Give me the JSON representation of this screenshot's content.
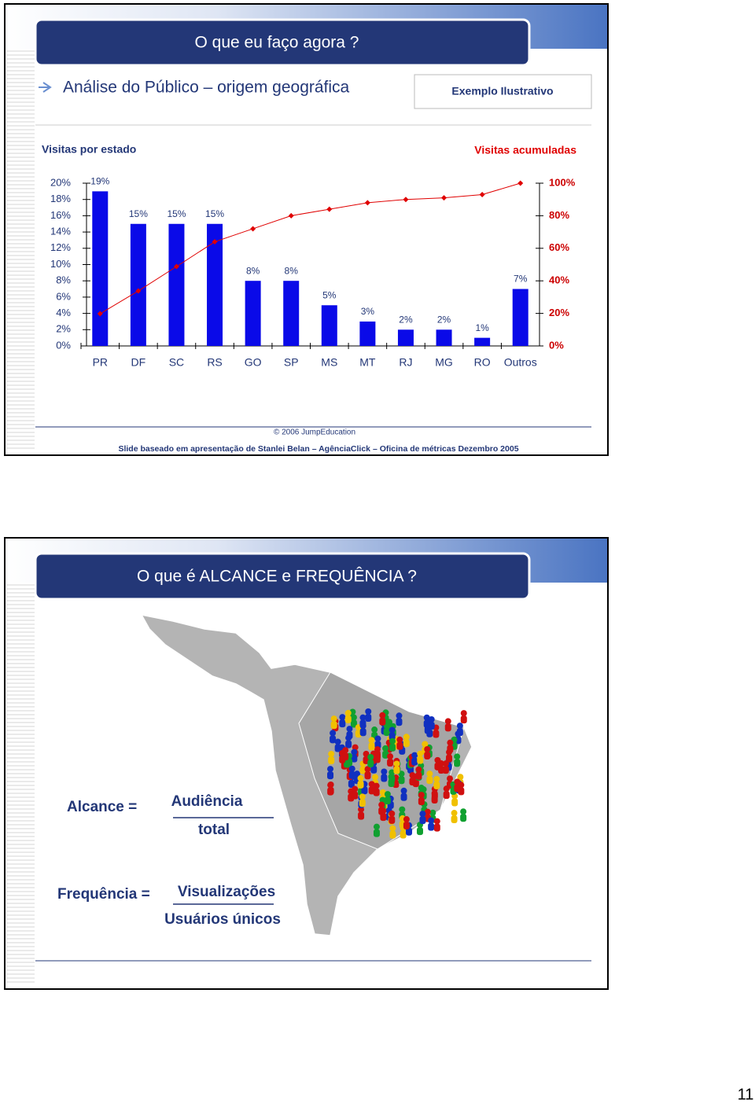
{
  "slides": [
    {
      "title": "O que eu faço agora ?",
      "subtitle": "Análise do Público – origem geográfica",
      "badge": "Exemplo Ilustrativo",
      "chart_data": {
        "type": "bar",
        "categories": [
          "PR",
          "DF",
          "SC",
          "RS",
          "GO",
          "SP",
          "MS",
          "MT",
          "RJ",
          "MG",
          "RO",
          "Outros"
        ],
        "series": [
          {
            "name": "Visitas por estado",
            "type": "bar",
            "color": "#0a0ae8",
            "values": [
              19,
              15,
              15,
              15,
              8,
              8,
              5,
              3,
              2,
              2,
              1,
              7
            ],
            "value_labels": [
              "19%",
              "15%",
              "15%",
              "15%",
              "8%",
              "8%",
              "5%",
              "3%",
              "2%",
              "2%",
              "1%",
              "7%"
            ]
          },
          {
            "name": "Visitas acumuladas",
            "type": "line",
            "axis": "y2",
            "color": "#e00000",
            "values": [
              19.8,
              33.8,
              48.8,
              64,
              72,
              80,
              84,
              88,
              90,
              91,
              93,
              100
            ]
          }
        ],
        "ylim": [
          0,
          20
        ],
        "yticks": [
          {
            "value": 0,
            "label": "0%"
          },
          {
            "value": 2,
            "label": "2%"
          },
          {
            "value": 4,
            "label": "4%"
          },
          {
            "value": 6,
            "label": "6%"
          },
          {
            "value": 8,
            "label": "8%"
          },
          {
            "value": 10,
            "label": "10%"
          },
          {
            "value": 12,
            "label": "12%"
          },
          {
            "value": 14,
            "label": "14%"
          },
          {
            "value": 16,
            "label": "16%"
          },
          {
            "value": 18,
            "label": "18%"
          },
          {
            "value": 20,
            "label": "20%"
          }
        ],
        "y2lim": [
          0,
          100
        ],
        "y2ticks": [
          {
            "value": 0,
            "label": "0%"
          },
          {
            "value": 20,
            "label": "20%"
          },
          {
            "value": 40,
            "label": "40%"
          },
          {
            "value": 60,
            "label": "60%"
          },
          {
            "value": 80,
            "label": "80%"
          },
          {
            "value": 100,
            "label": "100%"
          }
        ],
        "grid": false
      },
      "copyright": "© 2006 JumpEducation",
      "footer": "Slide baseado em apresentação de Stanlei Belan – AgênciaClick – Oficina de métricas Dezembro 2005"
    },
    {
      "title": "O que é ALCANCE e FREQUÊNCIA ?",
      "formulas": [
        {
          "label": "Alcance =",
          "numerator": "Audiência",
          "denominator": "total"
        },
        {
          "label": "Frequência =",
          "numerator": "Visualizações",
          "denominator": "Usuários únicos"
        }
      ]
    }
  ],
  "page_number": "11"
}
